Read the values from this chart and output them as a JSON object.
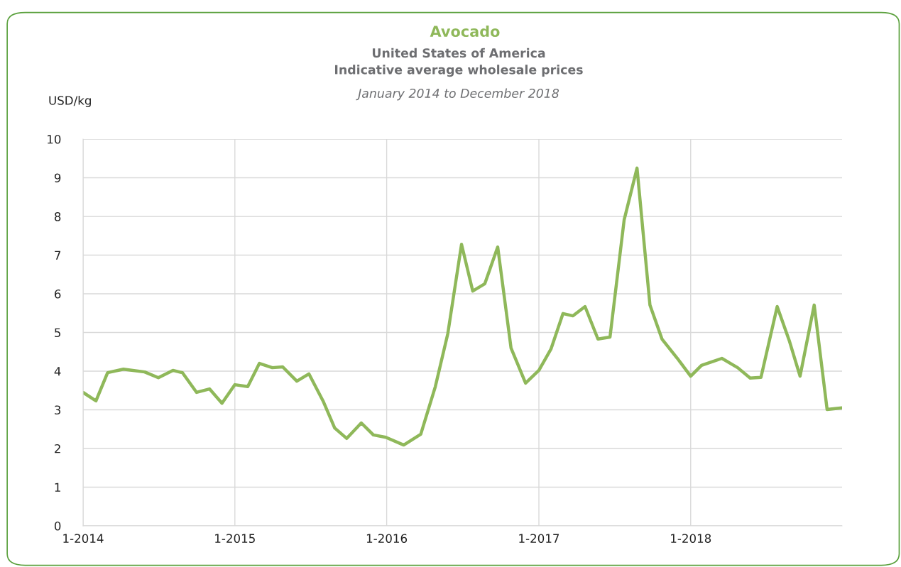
{
  "chart_data": {
    "type": "line",
    "title": "Avocado",
    "subtitle": "United States of America\nIndicative average wholesale prices",
    "annotations": [
      "January 2014 to December 2018"
    ],
    "ylabel": "USD/kg",
    "x": [
      "2014-01-01",
      "2014-02-01",
      "2014-03-01",
      "2014-04-08",
      "2014-05-29",
      "2014-07-01",
      "2014-08-05",
      "2014-08-28",
      "2014-10-01",
      "2014-11-01",
      "2014-12-01",
      "2015-01-01",
      "2015-02-01",
      "2015-03-01",
      "2015-04-01",
      "2015-04-26",
      "2015-05-30",
      "2015-06-28",
      "2015-08-01",
      "2015-08-29",
      "2015-09-27",
      "2015-11-01",
      "2015-11-30",
      "2015-12-30",
      "2016-02-11",
      "2016-03-23",
      "2016-04-27",
      "2016-05-27",
      "2016-06-29",
      "2016-07-26",
      "2016-08-24",
      "2016-09-24",
      "2016-10-26",
      "2016-11-30",
      "2017-01-01",
      "2017-01-30",
      "2017-02-28",
      "2017-03-24",
      "2017-04-22",
      "2017-05-23",
      "2017-06-21",
      "2017-07-25",
      "2017-08-25",
      "2017-09-25",
      "2017-10-24",
      "2017-11-30",
      "2018-01-01",
      "2018-01-27",
      "2018-03-17",
      "2018-04-24",
      "2018-05-24",
      "2018-06-19",
      "2018-07-28",
      "2018-08-26",
      "2018-09-21",
      "2018-10-25",
      "2018-11-25",
      "2018-12-31"
    ],
    "series": [
      {
        "color": "#8fb85a",
        "values": [
          3.45,
          3.23,
          3.96,
          4.05,
          3.98,
          3.83,
          4.02,
          3.96,
          3.45,
          3.54,
          3.17,
          3.65,
          3.6,
          4.2,
          4.09,
          4.11,
          3.74,
          3.93,
          3.23,
          2.53,
          2.26,
          2.66,
          2.35,
          2.29,
          2.09,
          2.37,
          3.6,
          4.97,
          7.28,
          6.07,
          6.26,
          7.21,
          4.6,
          3.69,
          4.02,
          4.57,
          5.49,
          5.43,
          5.67,
          4.83,
          4.88,
          7.91,
          9.25,
          5.71,
          4.83,
          4.33,
          3.87,
          4.15,
          4.33,
          4.09,
          3.82,
          3.84,
          5.67,
          4.79,
          3.87,
          5.71,
          3.01,
          3.05
        ]
      }
    ],
    "xlim": [
      "2014-01-01",
      "2018-12-31"
    ],
    "xticks": [
      {
        "value": "2014-01-01",
        "label": "1-2014"
      },
      {
        "value": "2015-01-01",
        "label": "1-2015"
      },
      {
        "value": "2016-01-01",
        "label": "1-2016"
      },
      {
        "value": "2017-01-01",
        "label": "1-2017"
      },
      {
        "value": "2018-01-01",
        "label": "1-2018"
      }
    ],
    "ylim": [
      0,
      10
    ],
    "yticks": [
      0,
      1,
      2,
      3,
      4,
      5,
      6,
      7,
      8,
      9,
      10
    ],
    "grid": true,
    "line_style": "solid",
    "marker": "none"
  }
}
